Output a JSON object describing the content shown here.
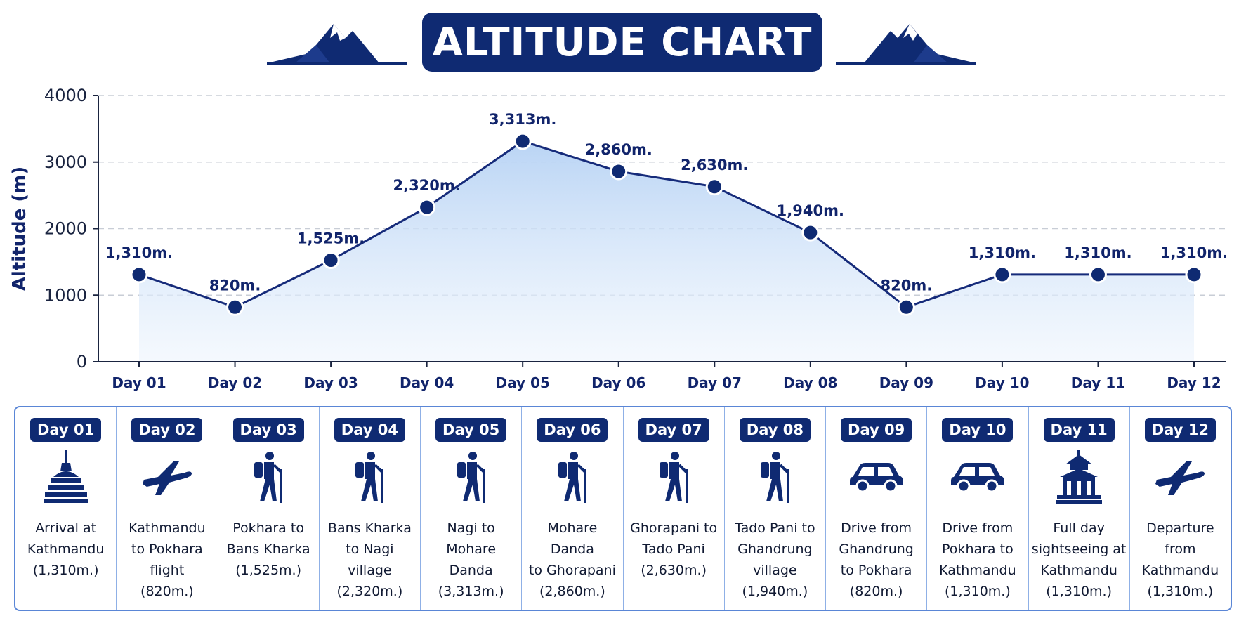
{
  "title": "ALTITUDE CHART",
  "colors": {
    "primary": "#0f2a72",
    "line": "#162b7a",
    "fill_top": "#bcd6f5",
    "grid": "#c8cdd6"
  },
  "chart_data": {
    "type": "line",
    "ylabel": "Altitude (m)",
    "xlabel": "",
    "ylim": [
      0,
      4000
    ],
    "yticks": [
      "0",
      "1000",
      "2000",
      "3000",
      "4000"
    ],
    "grid": true,
    "categories": [
      "Day 01",
      "Day 02",
      "Day 03",
      "Day 04",
      "Day 05",
      "Day 06",
      "Day 07",
      "Day 08",
      "Day 09",
      "Day 10",
      "Day 11",
      "Day 12"
    ],
    "values": [
      1310,
      820,
      1525,
      2320,
      3313,
      2860,
      2630,
      1940,
      820,
      1310,
      1310,
      1310
    ],
    "data_labels": [
      "1,310m.",
      "820m.",
      "1,525m.",
      "2,320m.",
      "3,313m.",
      "2,860m.",
      "2,630m.",
      "1,940m.",
      "820m.",
      "1,310m.",
      "1,310m.",
      "1,310m."
    ]
  },
  "days": [
    {
      "label": "Day 01",
      "icon": "stupa-icon",
      "desc": "Arrival at\nKathmandu\n(1,310m.)"
    },
    {
      "label": "Day 02",
      "icon": "airplane-icon",
      "desc": "Kathmandu\nto Pokhara\nflight\n(820m.)"
    },
    {
      "label": "Day 03",
      "icon": "hiker-icon",
      "desc": "Pokhara to\nBans Kharka\n(1,525m.)"
    },
    {
      "label": "Day 04",
      "icon": "hiker-icon",
      "desc": "Bans Kharka\nto Nagi village\n(2,320m.)"
    },
    {
      "label": "Day 05",
      "icon": "hiker-icon",
      "desc": "Nagi to\nMohare Danda\n(3,313m.)"
    },
    {
      "label": "Day 06",
      "icon": "hiker-icon",
      "desc": "Mohare Danda\nto Ghorapani\n(2,860m.)"
    },
    {
      "label": "Day 07",
      "icon": "hiker-icon",
      "desc": "Ghorapani to\nTado Pani\n(2,630m.)"
    },
    {
      "label": "Day 08",
      "icon": "hiker-icon",
      "desc": "Tado Pani to\nGhandrung\nvillage\n(1,940m.)"
    },
    {
      "label": "Day 09",
      "icon": "car-icon",
      "desc": "Drive from\nGhandrung\nto Pokhara\n(820m.)"
    },
    {
      "label": "Day 10",
      "icon": "car-icon",
      "desc": "Drive from\nPokhara to\nKathmandu\n(1,310m.)"
    },
    {
      "label": "Day 11",
      "icon": "temple-icon",
      "desc": "Full day\nsightseeing at\nKathmandu\n(1,310m.)"
    },
    {
      "label": "Day 12",
      "icon": "airplane-icon",
      "desc": "Departure\nfrom\nKathmandu\n(1,310m.)"
    }
  ]
}
